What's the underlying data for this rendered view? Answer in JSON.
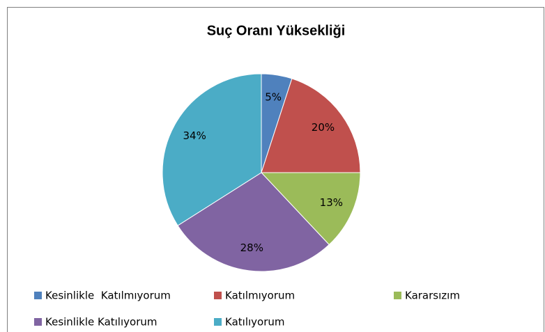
{
  "chart_data": {
    "type": "pie",
    "title": "Suç Oranı Yüksekliği",
    "categories": [
      "Kesinlikle  Katılmıyorum",
      "Katılmıyorum",
      "Kararsızım",
      "Kesinlikle Katılıyorum",
      "Katılıyorum"
    ],
    "values": [
      5,
      20,
      13,
      28,
      34
    ],
    "value_labels": [
      "5%",
      "20%",
      "13%",
      "28%",
      "34%"
    ],
    "colors": [
      "#4f81bd",
      "#c0504d",
      "#9bbb59",
      "#8064a2",
      "#4bacc6"
    ],
    "legend": "bottom"
  }
}
